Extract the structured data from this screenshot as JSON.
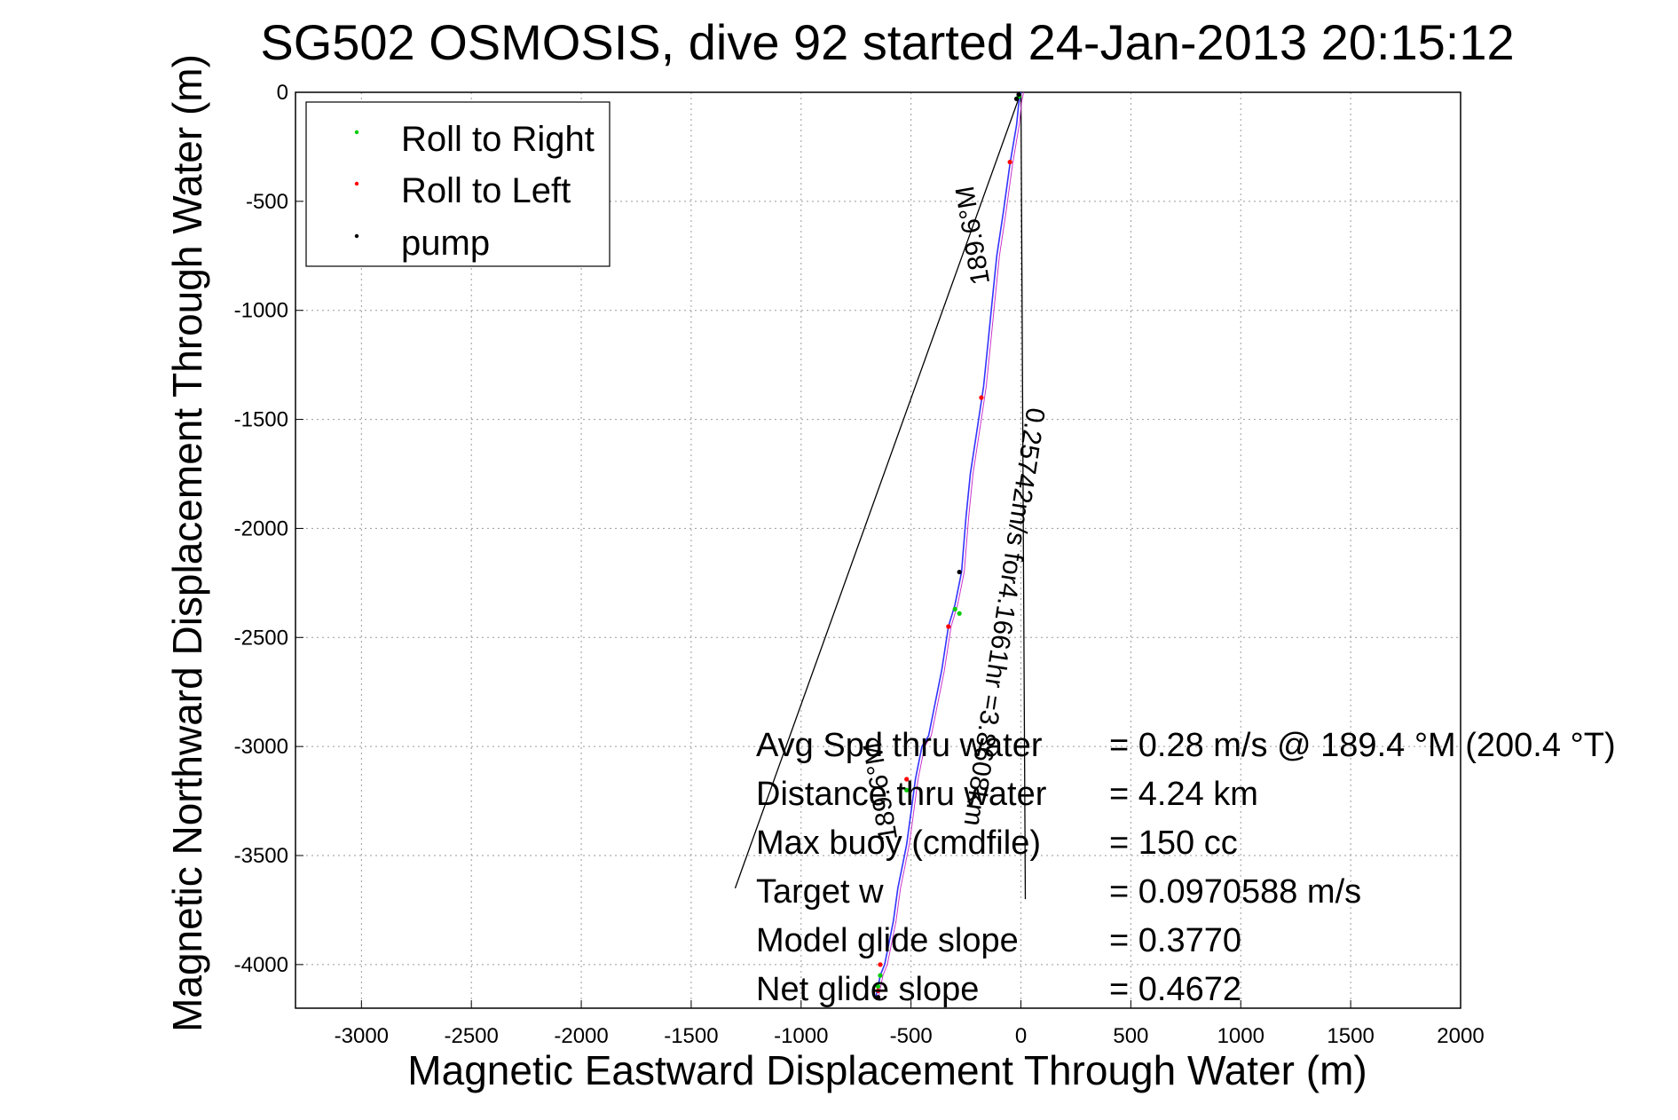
{
  "chart_data": {
    "type": "scatter",
    "title": "SG502 OSMOSIS, dive 92 started 24-Jan-2013 20:15:12",
    "xlabel": "Magnetic Eastward Displacement Through Water (m)",
    "ylabel": "Magnetic Northward Displacement Through Water (m)",
    "xlim": [
      -3300,
      2000
    ],
    "ylim": [
      -4200,
      0
    ],
    "xticks": [
      -3000,
      -2500,
      -2000,
      -1500,
      -1000,
      -500,
      0,
      500,
      1000,
      1500,
      2000
    ],
    "yticks": [
      0,
      -500,
      -1000,
      -1500,
      -2000,
      -2500,
      -3000,
      -3500,
      -4000
    ],
    "grid": true,
    "legend_position": "top-left",
    "legend": [
      {
        "label": "Roll to Right",
        "color": "#00cc00"
      },
      {
        "label": "Roll to Left",
        "color": "#ff0000"
      },
      {
        "label": "pump",
        "color": "#000000"
      }
    ],
    "track": {
      "color": "#3333ff",
      "x": [
        0,
        -10,
        -20,
        -50,
        -80,
        -110,
        -130,
        -150,
        -170,
        -200,
        -230,
        -250,
        -270,
        -300,
        -330,
        -360,
        -390,
        -420,
        -450,
        -480,
        -500,
        -520,
        -540,
        -560,
        -580,
        -600,
        -620,
        -640,
        -650,
        -660
      ],
      "y": [
        0,
        -50,
        -150,
        -330,
        -550,
        -750,
        -950,
        -1150,
        -1350,
        -1550,
        -1750,
        -1950,
        -2200,
        -2350,
        -2450,
        -2650,
        -2800,
        -2950,
        -3000,
        -3150,
        -3300,
        -3450,
        -3550,
        -3650,
        -3800,
        -3900,
        -4000,
        -4050,
        -4100,
        -4150
      ]
    },
    "roll_right_points": {
      "x": [
        -10,
        -300,
        -280,
        -520,
        -640,
        -650
      ],
      "y": [
        -20,
        -2370,
        -2390,
        -3200,
        -4050,
        -4100
      ]
    },
    "roll_left_points": {
      "x": [
        -50,
        -180,
        -330,
        -520,
        -640,
        -650
      ],
      "y": [
        -320,
        -1400,
        -2450,
        -3150,
        -4000,
        -4120
      ]
    },
    "pump_points": {
      "x": [
        -10,
        -20,
        -280,
        -650
      ],
      "y": [
        -10,
        -30,
        -2200,
        -4150
      ]
    },
    "reference_lines": [
      {
        "x": [
          0,
          -1300
        ],
        "y": [
          0,
          -3650
        ],
        "color": "#000000"
      },
      {
        "x": [
          0,
          20
        ],
        "y": [
          0,
          -3700
        ],
        "color": "#000000"
      }
    ],
    "annotations": [
      {
        "text": "0.25742m/s for4.1661hr =3.8608km",
        "x": -115,
        "y": -2400,
        "angle": -98.6
      },
      {
        "text": "189.6°M",
        "x": -180,
        "y": -650,
        "angle": 99.6
      },
      {
        "text": "189.6°M",
        "x": -600,
        "y": -3200,
        "angle": 99.6
      }
    ],
    "stats": [
      {
        "label": "Avg Spd thru water",
        "value": "=  0.28 m/s @ 189.4 °M (200.4 °T)"
      },
      {
        "label": "Distance thru water",
        "value": "=  4.24 km"
      },
      {
        "label": "Max buoy (cmdfile)",
        "value": "= 150 cc"
      },
      {
        "label": "Target w",
        "value": "= 0.0970588 m/s"
      },
      {
        "label": "Model glide slope",
        "value": "= 0.3770"
      },
      {
        "label": "Net glide slope",
        "value": "= 0.4672"
      }
    ]
  }
}
